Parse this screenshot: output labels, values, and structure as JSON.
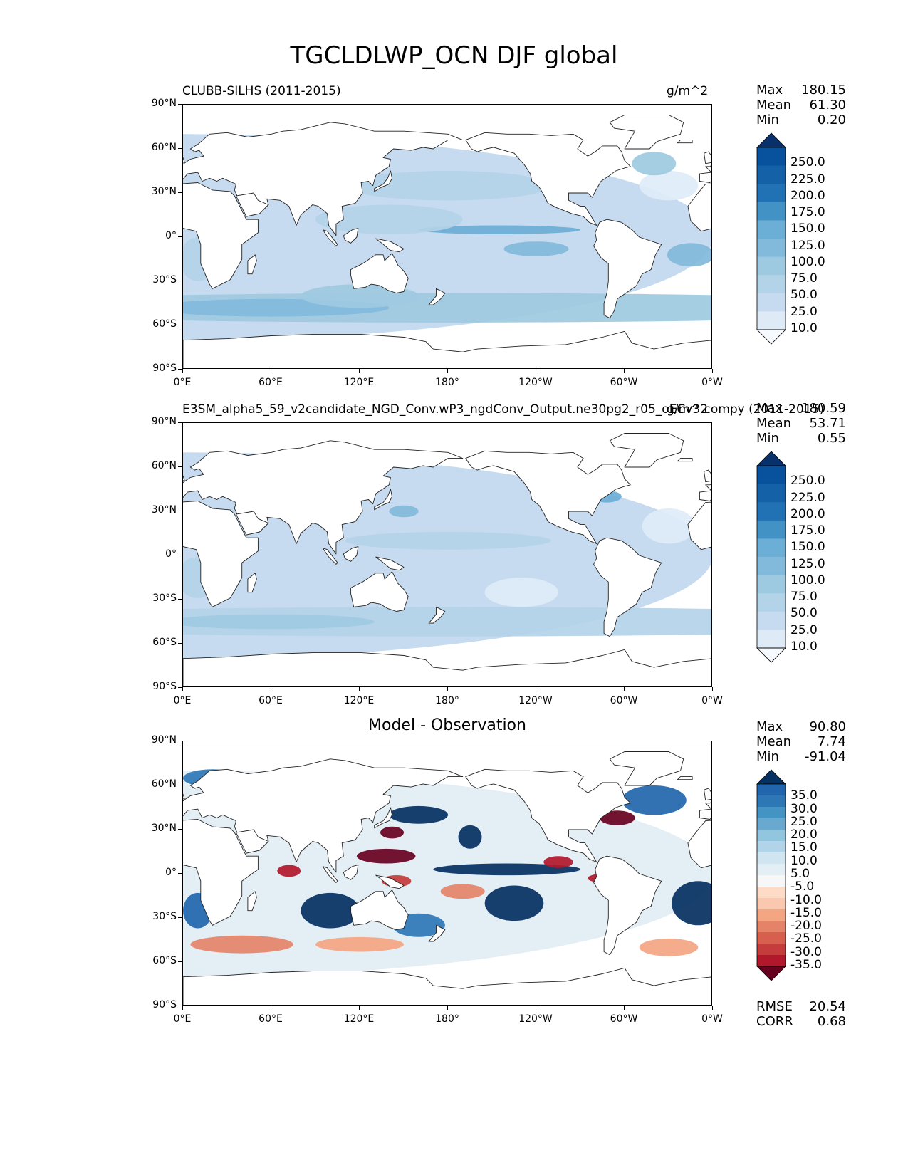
{
  "title": "TGCLDLWP_OCN DJF global",
  "panels": [
    {
      "label": "CLUBB-SILHS (2011-2015)",
      "units": "g/m^2",
      "stats": [
        {
          "name": "Max",
          "value": "180.15"
        },
        {
          "name": "Mean",
          "value": "61.30"
        },
        {
          "name": "Min",
          "value": "0.20"
        }
      ],
      "colorbar": {
        "type": "sequential",
        "labels": [
          "250.0",
          "225.0",
          "200.0",
          "175.0",
          "150.0",
          "125.0",
          "100.0",
          "75.0",
          "50.0",
          "25.0",
          "10.0"
        ]
      }
    },
    {
      "label": "E3SM_alpha5_59_v2candidate_NGD_Conv.wP3_ngdConv_Output.ne30pg2_r05_oECv3.compy (2011-2015)",
      "units": "g/m^2",
      "stats": [
        {
          "name": "Max",
          "value": "180.59"
        },
        {
          "name": "Mean",
          "value": "53.71"
        },
        {
          "name": "Min",
          "value": "0.55"
        }
      ],
      "colorbar": {
        "type": "sequential",
        "labels": [
          "250.0",
          "225.0",
          "200.0",
          "175.0",
          "150.0",
          "125.0",
          "100.0",
          "75.0",
          "50.0",
          "25.0",
          "10.0"
        ]
      }
    },
    {
      "label": "Model - Observation",
      "units": "",
      "stats": [
        {
          "name": "Max",
          "value": "90.80"
        },
        {
          "name": "Mean",
          "value": "7.74"
        },
        {
          "name": "Min",
          "value": "-91.04"
        }
      ],
      "extra_stats": [
        {
          "name": "RMSE",
          "value": "20.54"
        },
        {
          "name": "CORR",
          "value": "0.68"
        }
      ],
      "colorbar": {
        "type": "diverging",
        "labels": [
          "35.0",
          "30.0",
          "25.0",
          "20.0",
          "15.0",
          "10.0",
          "5.0",
          "-5.0",
          "-10.0",
          "-15.0",
          "-20.0",
          "-25.0",
          "-30.0",
          "-35.0"
        ]
      }
    }
  ],
  "axes": {
    "yticks": [
      "90°N",
      "60°N",
      "30°N",
      "0°",
      "30°S",
      "60°S",
      "90°S"
    ],
    "xticks": [
      "0°E",
      "60°E",
      "120°E",
      "180°",
      "120°W",
      "60°W",
      "0°W"
    ]
  },
  "colors": {
    "sequential": [
      "#f7fbff",
      "#deebf7",
      "#c6dbef",
      "#b3d3e8",
      "#9ecae1",
      "#82badb",
      "#6baed6",
      "#4292c6",
      "#2171b5",
      "#1461a8",
      "#08519c",
      "#08306b"
    ],
    "diverging": [
      "#67001f",
      "#b2182b",
      "#c43c3c",
      "#d6604d",
      "#e58368",
      "#f4a582",
      "#f9c8ae",
      "#fddbc7",
      "#f7f7f7",
      "#e4eef5",
      "#d1e5f0",
      "#b2d4e8",
      "#92c5de",
      "#6aa9cf",
      "#4393c3",
      "#2e77b5",
      "#2166ac",
      "#053061"
    ]
  },
  "chart_data": [
    {
      "type": "heatmap",
      "title": "CLUBB-SILHS (2011-2015)",
      "units": "g/m^2",
      "xlim": [
        0,
        360
      ],
      "ylim": [
        -90,
        90
      ],
      "color_levels": [
        10,
        25,
        50,
        75,
        100,
        125,
        150,
        175,
        200,
        225,
        250
      ],
      "max": 180.15,
      "mean": 61.3,
      "min": 0.2
    },
    {
      "type": "heatmap",
      "title": "E3SM_alpha5_59_v2candidate_NGD_Conv.wP3_ngdConv_Output.ne30pg2_r05_oECv3.compy (2011-2015)",
      "units": "g/m^2",
      "xlim": [
        0,
        360
      ],
      "ylim": [
        -90,
        90
      ],
      "color_levels": [
        10,
        25,
        50,
        75,
        100,
        125,
        150,
        175,
        200,
        225,
        250
      ],
      "max": 180.59,
      "mean": 53.71,
      "min": 0.55
    },
    {
      "type": "heatmap",
      "title": "Model - Observation",
      "xlim": [
        0,
        360
      ],
      "ylim": [
        -90,
        90
      ],
      "color_levels": [
        -35,
        -30,
        -25,
        -20,
        -15,
        -10,
        -5,
        5,
        10,
        15,
        20,
        25,
        30,
        35
      ],
      "max": 90.8,
      "mean": 7.74,
      "min": -91.04,
      "rmse": 20.54,
      "corr": 0.68
    }
  ]
}
